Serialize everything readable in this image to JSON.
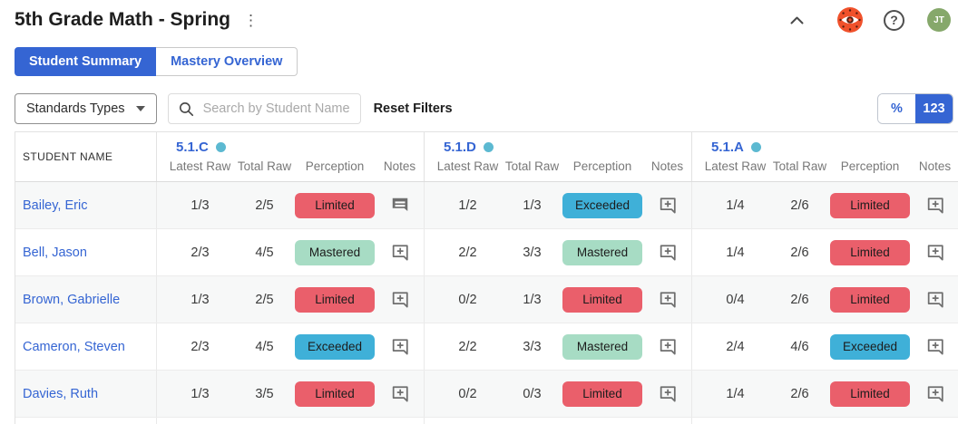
{
  "page": {
    "title": "5th Grade Math - Spring"
  },
  "topbar": {
    "kebab_icon": "⋮",
    "help_glyph": "?",
    "avatar_initials": "JT",
    "icons": [
      "kebab-menu-icon",
      "chevron-up-icon",
      "eye-logo-icon",
      "help-icon",
      "avatar"
    ]
  },
  "tabs": {
    "items": [
      {
        "label": "Student Summary",
        "active": true
      },
      {
        "label": "Mastery Overview",
        "active": false
      }
    ]
  },
  "filters": {
    "standards_types_label": "Standards Types",
    "search_placeholder": "Search by Student Name",
    "reset_label": "Reset Filters",
    "display_toggle": {
      "percent_label": "%",
      "count_label": "123",
      "selected": "count"
    }
  },
  "table": {
    "student_name_header": "STUDENT NAME",
    "subheaders": [
      "Latest Raw",
      "Total Raw",
      "Perception",
      "Notes"
    ],
    "groups": [
      {
        "code": "5.1.C"
      },
      {
        "code": "5.1.D"
      },
      {
        "code": "5.1.A"
      }
    ],
    "perception_colors": {
      "Limited": "#ea5f6b",
      "Mastered": "#a7dcc4",
      "Exceeded": "#3fb0d8"
    },
    "rows": [
      {
        "name": "Bailey, Eric",
        "cells": [
          {
            "latest": "1/3",
            "total": "2/5",
            "perception": "Limited",
            "note": "view"
          },
          {
            "latest": "1/2",
            "total": "1/3",
            "perception": "Exceeded",
            "note": "add"
          },
          {
            "latest": "1/4",
            "total": "2/6",
            "perception": "Limited",
            "note": "add"
          }
        ]
      },
      {
        "name": "Bell, Jason",
        "cells": [
          {
            "latest": "2/3",
            "total": "4/5",
            "perception": "Mastered",
            "note": "add"
          },
          {
            "latest": "2/2",
            "total": "3/3",
            "perception": "Mastered",
            "note": "add"
          },
          {
            "latest": "1/4",
            "total": "2/6",
            "perception": "Limited",
            "note": "add"
          }
        ]
      },
      {
        "name": "Brown, Gabrielle",
        "cells": [
          {
            "latest": "1/3",
            "total": "2/5",
            "perception": "Limited",
            "note": "add"
          },
          {
            "latest": "0/2",
            "total": "1/3",
            "perception": "Limited",
            "note": "add"
          },
          {
            "latest": "0/4",
            "total": "2/6",
            "perception": "Limited",
            "note": "add"
          }
        ]
      },
      {
        "name": "Cameron, Steven",
        "cells": [
          {
            "latest": "2/3",
            "total": "4/5",
            "perception": "Exceeded",
            "note": "add"
          },
          {
            "latest": "2/2",
            "total": "3/3",
            "perception": "Mastered",
            "note": "add"
          },
          {
            "latest": "2/4",
            "total": "4/6",
            "perception": "Exceeded",
            "note": "add"
          }
        ]
      },
      {
        "name": "Davies, Ruth",
        "cells": [
          {
            "latest": "1/3",
            "total": "3/5",
            "perception": "Limited",
            "note": "add"
          },
          {
            "latest": "0/2",
            "total": "0/3",
            "perception": "Limited",
            "note": "add"
          },
          {
            "latest": "1/4",
            "total": "2/6",
            "perception": "Limited",
            "note": "add"
          }
        ]
      }
    ]
  },
  "colors": {
    "accent_blue": "#3565d3",
    "dot_teal": "#5cb9d1",
    "badge_limited": "#ea5f6b",
    "badge_mastered": "#a7dcc4",
    "badge_exceeded": "#3fb0d8",
    "avatar_green": "#86a86b",
    "logo_orange": "#f0512b"
  }
}
